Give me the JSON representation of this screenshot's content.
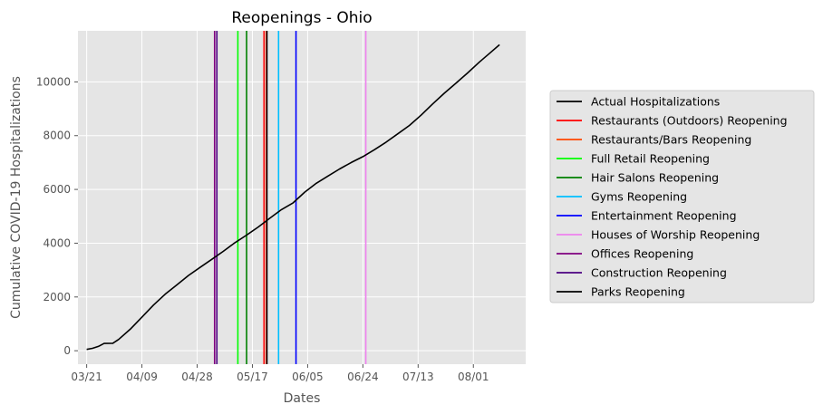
{
  "chart_data": {
    "type": "line",
    "title": "Reopenings - Ohio",
    "xlabel": "Dates",
    "ylabel": "Cumulative COVID-19 Hospitalizations",
    "x_ticks": [
      "03/21",
      "04/09",
      "04/28",
      "05/17",
      "06/05",
      "06/24",
      "07/13",
      "08/01"
    ],
    "y_ticks": [
      "0",
      "2000",
      "4000",
      "6000",
      "8000",
      "10000"
    ],
    "xlim": [
      "2020-03-18",
      "2020-08-19"
    ],
    "ylim": [
      -500,
      11900
    ],
    "grid": true,
    "legend_position": "right",
    "series": [
      {
        "name": "Actual Hospitalizations",
        "color": "#000000",
        "points": [
          [
            "2020-03-21",
            50
          ],
          [
            "2020-03-23",
            90
          ],
          [
            "2020-03-25",
            160
          ],
          [
            "2020-03-27",
            270
          ],
          [
            "2020-03-30",
            280
          ],
          [
            "2020-04-01",
            420
          ],
          [
            "2020-04-05",
            800
          ],
          [
            "2020-04-09",
            1250
          ],
          [
            "2020-04-13",
            1700
          ],
          [
            "2020-04-17",
            2100
          ],
          [
            "2020-04-21",
            2450
          ],
          [
            "2020-04-25",
            2800
          ],
          [
            "2020-04-29",
            3100
          ],
          [
            "2020-05-03",
            3400
          ],
          [
            "2020-05-07",
            3700
          ],
          [
            "2020-05-11",
            4020
          ],
          [
            "2020-05-15",
            4300
          ],
          [
            "2020-05-19",
            4600
          ],
          [
            "2020-05-23",
            4930
          ],
          [
            "2020-05-27",
            5250
          ],
          [
            "2020-05-31",
            5500
          ],
          [
            "2020-06-04",
            5900
          ],
          [
            "2020-06-08",
            6230
          ],
          [
            "2020-06-12",
            6500
          ],
          [
            "2020-06-16",
            6760
          ],
          [
            "2020-06-20",
            7000
          ],
          [
            "2020-06-24",
            7220
          ],
          [
            "2020-06-28",
            7480
          ],
          [
            "2020-07-02",
            7760
          ],
          [
            "2020-07-06",
            8070
          ],
          [
            "2020-07-10",
            8380
          ],
          [
            "2020-07-14",
            8760
          ],
          [
            "2020-07-18",
            9180
          ],
          [
            "2020-07-22",
            9580
          ],
          [
            "2020-07-26",
            9950
          ],
          [
            "2020-07-30",
            10330
          ],
          [
            "2020-08-03",
            10730
          ],
          [
            "2020-08-07",
            11100
          ],
          [
            "2020-08-10",
            11380
          ]
        ]
      }
    ],
    "events": [
      {
        "name": "Restaurants (Outdoors) Reopening",
        "date": "2020-05-21",
        "color": "#ff0000"
      },
      {
        "name": "Restaurants/Bars Reopening",
        "date": "2020-05-21",
        "color": "#ff4500"
      },
      {
        "name": "Full Retail Reopening",
        "date": "2020-05-12",
        "color": "#00ff00"
      },
      {
        "name": "Hair Salons Reopening",
        "date": "2020-05-15",
        "color": "#008000"
      },
      {
        "name": "Gyms Reopening",
        "date": "2020-05-26",
        "color": "#00bfff"
      },
      {
        "name": "Entertainment Reopening",
        "date": "2020-06-01",
        "color": "#0000ff"
      },
      {
        "name": "Houses of Worship Reopening",
        "date": "2020-06-25",
        "color": "#ee82ee"
      },
      {
        "name": "Offices Reopening",
        "date": "2020-05-04",
        "color": "#800080"
      },
      {
        "name": "Construction Reopening",
        "date": "2020-05-04",
        "color": "#4b0082"
      },
      {
        "name": "Parks Reopening",
        "date": "2020-05-22",
        "color": "#000000"
      }
    ],
    "legend": [
      {
        "label": "Actual Hospitalizations",
        "color": "#000000"
      },
      {
        "label": "Restaurants (Outdoors) Reopening",
        "color": "#ff0000"
      },
      {
        "label": "Restaurants/Bars Reopening",
        "color": "#ff4500"
      },
      {
        "label": "Full Retail Reopening",
        "color": "#00ff00"
      },
      {
        "label": "Hair Salons Reopening",
        "color": "#008000"
      },
      {
        "label": "Gyms Reopening",
        "color": "#00bfff"
      },
      {
        "label": "Entertainment Reopening",
        "color": "#0000ff"
      },
      {
        "label": "Houses of Worship Reopening",
        "color": "#ee82ee"
      },
      {
        "label": "Offices Reopening",
        "color": "#800080"
      },
      {
        "label": "Construction Reopening",
        "color": "#4b0082"
      },
      {
        "label": "Parks Reopening",
        "color": "#000000"
      }
    ]
  }
}
